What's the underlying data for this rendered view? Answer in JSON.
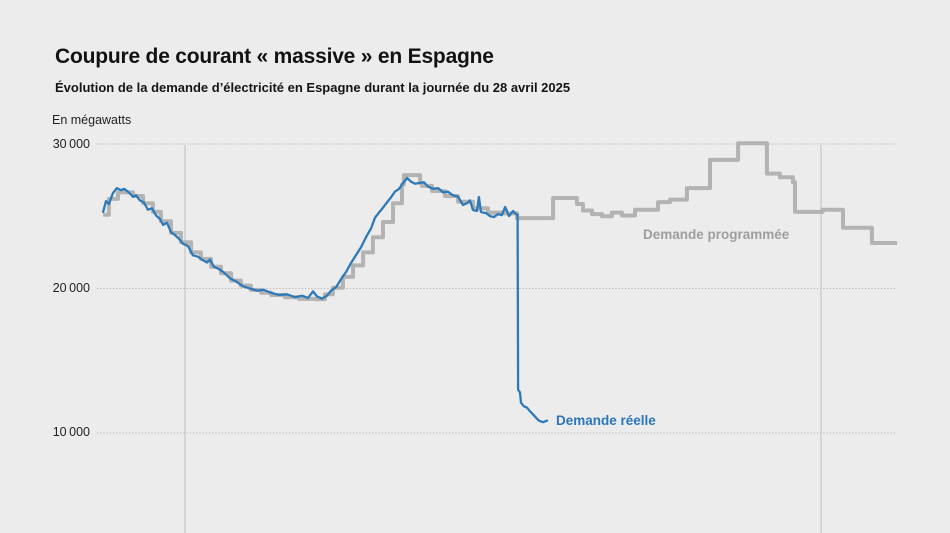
{
  "header": {
    "title": "Coupure de courant « massive » en Espagne",
    "subtitle": "Évolution de la demande d’électricité en Espagne durant la journée du 28 avril 2025"
  },
  "chart_data": {
    "type": "line",
    "title": "Coupure de courant « massive » en Espagne",
    "subtitle": "Évolution de la demande d’électricité en Espagne durant la journée du 28 avril 2025",
    "unit_label": "En mégawatts",
    "ylabel": "En mégawatts",
    "ylim": [
      10000,
      30000
    ],
    "grid": "dotted-horizontal",
    "legend_position": "inline-labels-on-chart",
    "colors": {
      "background": "#ececec",
      "grid_dotted": "#aaaaaa",
      "grid_vertical": "#cbcbcb"
    },
    "y_axis": {
      "ticks": [
        {
          "value": 30000,
          "label": "30 000"
        },
        {
          "value": 20000,
          "label": "20 000"
        },
        {
          "value": 10000,
          "label": "10 000"
        }
      ]
    },
    "x_axis": {
      "description": "Heures, t=0 correspond au 28 avril 2025 00:00 (aucune étiquette visible sur l’axe)",
      "range_hours": [
        -3.09,
        26.87
      ],
      "midnight_gridlines_t": [
        0,
        24
      ]
    },
    "series": [
      {
        "name": "Demande programmée",
        "color": "#b3b3b3",
        "style": "step",
        "points": [
          [
            -3.09,
            25100
          ],
          [
            -2.87,
            26200
          ],
          [
            -2.53,
            26650
          ],
          [
            -1.96,
            26400
          ],
          [
            -1.58,
            25900
          ],
          [
            -1.21,
            25300
          ],
          [
            -0.91,
            24650
          ],
          [
            -0.53,
            23850
          ],
          [
            -0.15,
            23200
          ],
          [
            0.23,
            22500
          ],
          [
            0.6,
            22050
          ],
          [
            0.98,
            21500
          ],
          [
            1.36,
            21050
          ],
          [
            1.74,
            20550
          ],
          [
            2.11,
            20200
          ],
          [
            2.49,
            19900
          ],
          [
            2.87,
            19700
          ],
          [
            3.25,
            19550
          ],
          [
            3.77,
            19400
          ],
          [
            4.3,
            19280
          ],
          [
            4.91,
            19260
          ],
          [
            5.28,
            19600
          ],
          [
            5.58,
            20050
          ],
          [
            5.96,
            20800
          ],
          [
            6.34,
            21600
          ],
          [
            6.72,
            22500
          ],
          [
            7.09,
            23550
          ],
          [
            7.47,
            24600
          ],
          [
            7.85,
            25900
          ],
          [
            8.19,
            27200
          ],
          [
            8.26,
            27850
          ],
          [
            8.87,
            27300
          ],
          [
            8.94,
            27100
          ],
          [
            9.32,
            26750
          ],
          [
            9.81,
            26400
          ],
          [
            10.3,
            26000
          ],
          [
            10.87,
            25550
          ],
          [
            11.43,
            25250
          ],
          [
            12.04,
            25200
          ],
          [
            12.53,
            24870
          ],
          [
            13.89,
            26260
          ],
          [
            14.79,
            25850
          ],
          [
            15.02,
            25400
          ],
          [
            15.36,
            25150
          ],
          [
            15.74,
            25000
          ],
          [
            16.11,
            25250
          ],
          [
            16.49,
            25050
          ],
          [
            16.98,
            25450
          ],
          [
            17.85,
            25980
          ],
          [
            18.3,
            26150
          ],
          [
            18.94,
            26950
          ],
          [
            19.81,
            28900
          ],
          [
            20.87,
            30050
          ],
          [
            21.96,
            27950
          ],
          [
            22.45,
            27700
          ],
          [
            22.94,
            27350
          ],
          [
            23.02,
            25300
          ],
          [
            24.06,
            25450
          ],
          [
            24.83,
            24200
          ],
          [
            25.92,
            23150
          ],
          [
            26.87,
            23150
          ]
        ]
      },
      {
        "name": "Demande réelle",
        "color": "#2e79b8",
        "style": "line",
        "points": [
          [
            -3.09,
            25300
          ],
          [
            -2.98,
            26050
          ],
          [
            -2.87,
            25850
          ],
          [
            -2.72,
            26600
          ],
          [
            -2.57,
            26950
          ],
          [
            -2.42,
            26800
          ],
          [
            -2.3,
            26900
          ],
          [
            -2.15,
            26700
          ],
          [
            -1.96,
            26350
          ],
          [
            -1.85,
            26450
          ],
          [
            -1.7,
            26100
          ],
          [
            -1.55,
            25950
          ],
          [
            -1.4,
            25450
          ],
          [
            -1.25,
            25550
          ],
          [
            -1.09,
            25050
          ],
          [
            -0.94,
            24800
          ],
          [
            -0.83,
            24400
          ],
          [
            -0.68,
            24550
          ],
          [
            -0.53,
            23900
          ],
          [
            -0.38,
            23700
          ],
          [
            -0.23,
            23450
          ],
          [
            -0.08,
            23100
          ],
          [
            0.11,
            22950
          ],
          [
            0.3,
            22300
          ],
          [
            0.49,
            22200
          ],
          [
            0.68,
            21950
          ],
          [
            0.83,
            21800
          ],
          [
            0.94,
            22000
          ],
          [
            1.09,
            21500
          ],
          [
            1.28,
            21350
          ],
          [
            1.47,
            21100
          ],
          [
            1.7,
            20700
          ],
          [
            1.92,
            20500
          ],
          [
            2.19,
            20150
          ],
          [
            2.45,
            20000
          ],
          [
            2.72,
            19850
          ],
          [
            2.98,
            19900
          ],
          [
            3.25,
            19700
          ],
          [
            3.55,
            19550
          ],
          [
            3.85,
            19600
          ],
          [
            4.15,
            19400
          ],
          [
            4.42,
            19500
          ],
          [
            4.64,
            19350
          ],
          [
            4.83,
            19800
          ],
          [
            4.98,
            19450
          ],
          [
            5.17,
            19300
          ],
          [
            5.36,
            19500
          ],
          [
            5.51,
            19850
          ],
          [
            5.7,
            20100
          ],
          [
            5.89,
            20650
          ],
          [
            6.08,
            21150
          ],
          [
            6.26,
            21750
          ],
          [
            6.45,
            22300
          ],
          [
            6.64,
            22850
          ],
          [
            6.83,
            23550
          ],
          [
            7.02,
            24150
          ],
          [
            7.17,
            24900
          ],
          [
            7.32,
            25250
          ],
          [
            7.47,
            25600
          ],
          [
            7.62,
            25950
          ],
          [
            7.77,
            26300
          ],
          [
            7.92,
            26700
          ],
          [
            8.08,
            26900
          ],
          [
            8.23,
            27300
          ],
          [
            8.38,
            27650
          ],
          [
            8.53,
            27400
          ],
          [
            8.68,
            27250
          ],
          [
            8.83,
            27300
          ],
          [
            9.02,
            27350
          ],
          [
            9.17,
            27050
          ],
          [
            9.36,
            26900
          ],
          [
            9.55,
            26950
          ],
          [
            9.74,
            26650
          ],
          [
            9.92,
            26700
          ],
          [
            10.11,
            26450
          ],
          [
            10.3,
            26350
          ],
          [
            10.49,
            25780
          ],
          [
            10.64,
            25900
          ],
          [
            10.75,
            26100
          ],
          [
            10.87,
            25430
          ],
          [
            11.02,
            25360
          ],
          [
            11.09,
            26330
          ],
          [
            11.17,
            25290
          ],
          [
            11.36,
            25220
          ],
          [
            11.51,
            25010
          ],
          [
            11.66,
            24940
          ],
          [
            11.81,
            25150
          ],
          [
            11.96,
            25080
          ],
          [
            12.08,
            25640
          ],
          [
            12.23,
            25010
          ],
          [
            12.38,
            25360
          ],
          [
            12.49,
            25150
          ],
          [
            12.55,
            25100
          ],
          [
            12.57,
            13000
          ],
          [
            12.64,
            12800
          ],
          [
            12.68,
            12100
          ],
          [
            12.79,
            11850
          ],
          [
            12.91,
            11750
          ],
          [
            13.02,
            11500
          ],
          [
            13.13,
            11300
          ],
          [
            13.25,
            11050
          ],
          [
            13.36,
            10850
          ],
          [
            13.51,
            10750
          ],
          [
            13.66,
            10850
          ]
        ]
      }
    ]
  }
}
